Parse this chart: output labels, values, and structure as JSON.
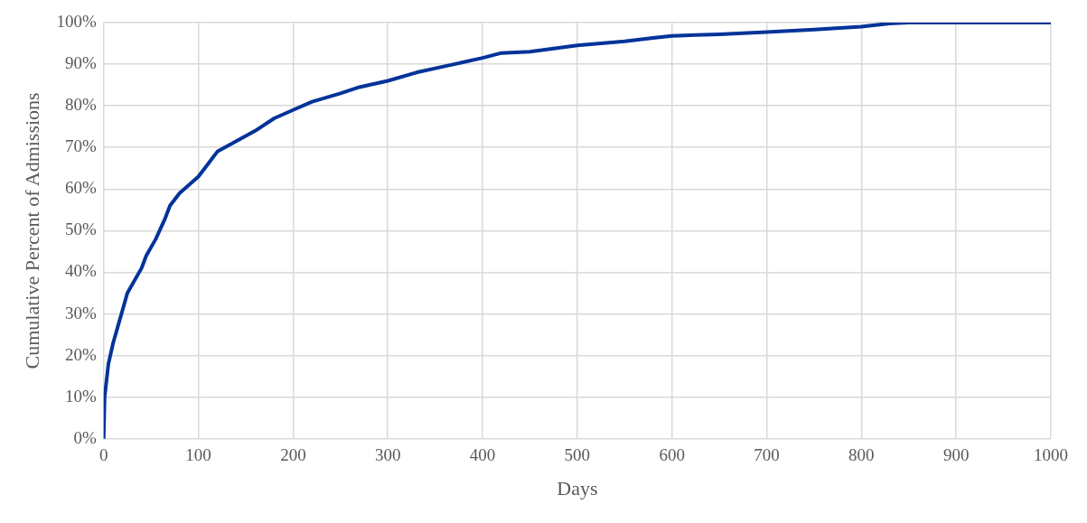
{
  "chart_data": {
    "type": "line",
    "xlabel": "Days",
    "ylabel": "Cumulative Percent of Admissions",
    "xlim": [
      0,
      1000
    ],
    "xticks": [
      0,
      100,
      200,
      300,
      400,
      500,
      600,
      700,
      800,
      900,
      1000
    ],
    "ylim": [
      0,
      100
    ],
    "yticks": [
      {
        "value": 0,
        "label": "0%"
      },
      {
        "value": 10,
        "label": "10%"
      },
      {
        "value": 20,
        "label": "20%"
      },
      {
        "value": 30,
        "label": "30%"
      },
      {
        "value": 40,
        "label": "40%"
      },
      {
        "value": 50,
        "label": "50%"
      },
      {
        "value": 60,
        "label": "60%"
      },
      {
        "value": 70,
        "label": "70%"
      },
      {
        "value": 80,
        "label": "80%"
      },
      {
        "value": 90,
        "label": "90%"
      },
      {
        "value": 100,
        "label": "100%"
      }
    ],
    "grid": true,
    "legend": false,
    "marker": "none",
    "line_style": "solid",
    "series": [
      {
        "color": "#003399",
        "x": [
          0,
          1,
          5,
          10,
          15,
          20,
          25,
          30,
          40,
          45,
          55,
          65,
          70,
          80,
          90,
          100,
          110,
          120,
          140,
          160,
          180,
          200,
          220,
          250,
          270,
          300,
          330,
          360,
          400,
          420,
          450,
          500,
          550,
          580,
          600,
          650,
          700,
          750,
          800,
          830,
          850,
          1000
        ],
        "values": [
          0,
          10,
          18,
          23,
          27,
          31,
          35,
          37,
          41,
          44,
          48,
          53,
          56,
          59,
          61,
          63,
          66,
          69,
          71.5,
          74,
          77,
          79,
          81,
          83,
          84.5,
          86,
          88,
          89.5,
          91.5,
          92.7,
          93,
          94.5,
          95.5,
          96.3,
          96.8,
          97.2,
          97.7,
          98.3,
          99,
          99.8,
          100,
          100
        ]
      }
    ]
  }
}
